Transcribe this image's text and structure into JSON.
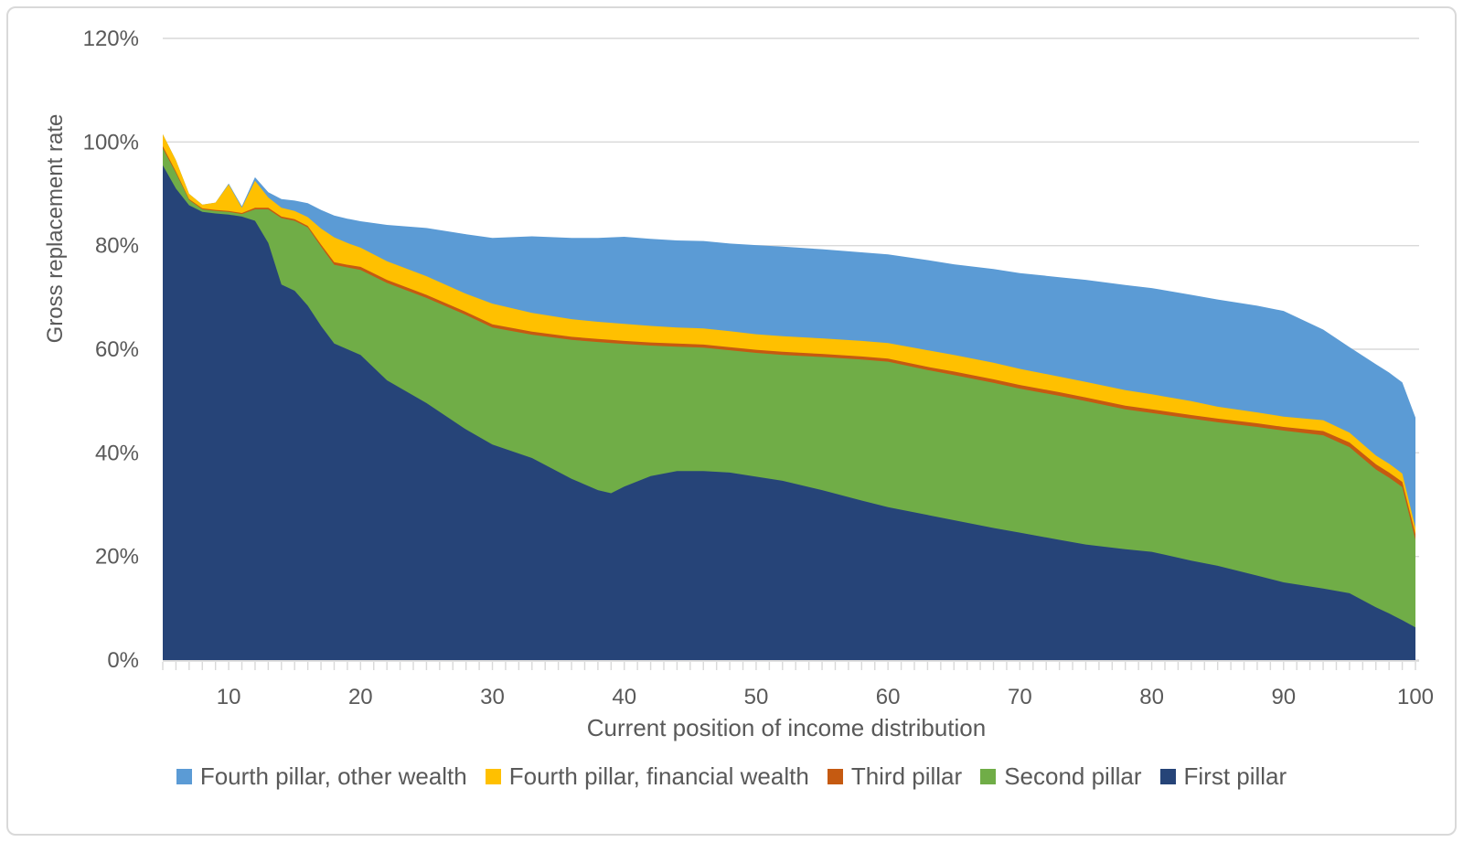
{
  "palette": {
    "grid": "#D9D9D9",
    "axis": "#D9D9D9",
    "tick": "#D9D9D9",
    "text": "#595959",
    "figure_border": "#D9D9D9",
    "background": "#FFFFFF"
  },
  "chart_data": {
    "type": "area",
    "stacked": true,
    "title": "",
    "xlabel": "Current position of income distribution",
    "ylabel": "Gross replacement rate",
    "xlim": [
      5,
      100
    ],
    "ylim": [
      0,
      120
    ],
    "grid": "horizontal",
    "legend_position": "bottom",
    "x_ticks": [
      10,
      20,
      30,
      40,
      50,
      60,
      70,
      80,
      90,
      100
    ],
    "y_ticks": [
      0,
      20,
      40,
      60,
      80,
      100,
      120
    ],
    "y_tick_suffix": "%",
    "x": [
      5,
      6,
      7,
      8,
      9,
      10,
      11,
      12,
      13,
      14,
      15,
      16,
      17,
      18,
      19,
      20,
      22,
      25,
      28,
      30,
      33,
      36,
      38,
      39,
      40,
      42,
      44,
      46,
      48,
      50,
      52,
      55,
      58,
      60,
      63,
      65,
      68,
      70,
      73,
      75,
      78,
      80,
      83,
      85,
      88,
      90,
      93,
      95,
      97,
      98,
      99,
      100
    ],
    "series": [
      {
        "name": "First pillar",
        "color": "#264478",
        "values": [
          95.5,
          91.0,
          87.8,
          86.5,
          86.2,
          86.0,
          85.6,
          84.8,
          80.5,
          72.5,
          71.3,
          68.4,
          64.5,
          61.1,
          60.0,
          58.9,
          54.0,
          49.6,
          44.5,
          41.6,
          39.0,
          35.0,
          32.8,
          32.2,
          33.5,
          35.5,
          36.5,
          36.5,
          36.2,
          35.4,
          34.6,
          32.8,
          30.8,
          29.5,
          28.0,
          27.0,
          25.5,
          24.6,
          23.2,
          22.3,
          21.4,
          20.9,
          19.2,
          18.2,
          16.3,
          15.0,
          13.8,
          12.9,
          10.2,
          9.0,
          7.7,
          6.3
        ]
      },
      {
        "name": "Second pillar",
        "color": "#70AD47",
        "values": [
          3.3,
          3.0,
          1.0,
          0.5,
          0.5,
          0.5,
          0.5,
          2.2,
          6.5,
          12.8,
          13.5,
          15.1,
          15.3,
          15.2,
          15.8,
          16.4,
          18.8,
          20.3,
          22.1,
          22.6,
          23.8,
          26.8,
          28.6,
          29.0,
          27.5,
          25.2,
          24.0,
          23.8,
          23.6,
          23.9,
          24.3,
          25.7,
          27.2,
          28.1,
          28.0,
          28.0,
          28.0,
          27.8,
          27.8,
          27.7,
          27.0,
          26.8,
          27.4,
          27.7,
          28.7,
          29.3,
          29.6,
          28.2,
          26.6,
          26.2,
          25.7,
          16.9
        ]
      },
      {
        "name": "Third pillar",
        "color": "#C55A11",
        "values": [
          0.4,
          0.3,
          0.2,
          0.2,
          0.2,
          0.2,
          0.2,
          0.3,
          0.3,
          0.3,
          0.3,
          0.3,
          0.4,
          0.5,
          0.5,
          0.6,
          0.6,
          0.6,
          0.6,
          0.6,
          0.6,
          0.6,
          0.6,
          0.6,
          0.6,
          0.6,
          0.6,
          0.6,
          0.6,
          0.6,
          0.6,
          0.6,
          0.6,
          0.6,
          0.6,
          0.7,
          0.7,
          0.7,
          0.7,
          0.7,
          0.7,
          0.7,
          0.7,
          0.7,
          0.7,
          0.7,
          0.8,
          0.9,
          1.0,
          1.0,
          1.0,
          1.1
        ]
      },
      {
        "name": "Fourth pillar, financial wealth",
        "color": "#FFC000",
        "values": [
          2.3,
          2.2,
          1.0,
          0.7,
          1.4,
          5.1,
          1.0,
          5.2,
          2.0,
          1.7,
          1.6,
          1.7,
          3.1,
          4.8,
          4.2,
          3.7,
          3.6,
          3.6,
          3.5,
          4.0,
          3.6,
          3.4,
          3.3,
          3.3,
          3.3,
          3.2,
          3.1,
          3.1,
          3.1,
          3.0,
          3.0,
          3.0,
          3.0,
          3.0,
          3.2,
          3.2,
          3.2,
          3.1,
          3.0,
          3.0,
          3.0,
          2.9,
          2.7,
          2.3,
          2.1,
          2.0,
          2.1,
          1.9,
          1.7,
          1.7,
          1.6,
          1.2
        ]
      },
      {
        "name": "Fourth pillar, other wealth",
        "color": "#5B9BD5",
        "values": [
          0,
          0,
          0,
          0,
          0,
          0.2,
          0.3,
          0.7,
          1.0,
          1.7,
          2.0,
          2.7,
          3.6,
          4.2,
          4.7,
          5.1,
          7.0,
          9.3,
          11.5,
          12.7,
          14.8,
          15.7,
          16.2,
          16.5,
          16.8,
          16.8,
          16.8,
          16.9,
          16.9,
          17.2,
          17.3,
          17.2,
          17.1,
          17.1,
          17.4,
          17.5,
          18.1,
          18.5,
          19.2,
          19.7,
          20.3,
          20.5,
          20.5,
          20.7,
          20.6,
          20.4,
          17.5,
          16.5,
          17.6,
          17.6,
          17.6,
          21.3
        ]
      }
    ],
    "legend_order_left_to_right": [
      "Fourth pillar, other wealth",
      "Fourth pillar, financial wealth",
      "Third pillar",
      "Second pillar",
      "First pillar"
    ]
  }
}
